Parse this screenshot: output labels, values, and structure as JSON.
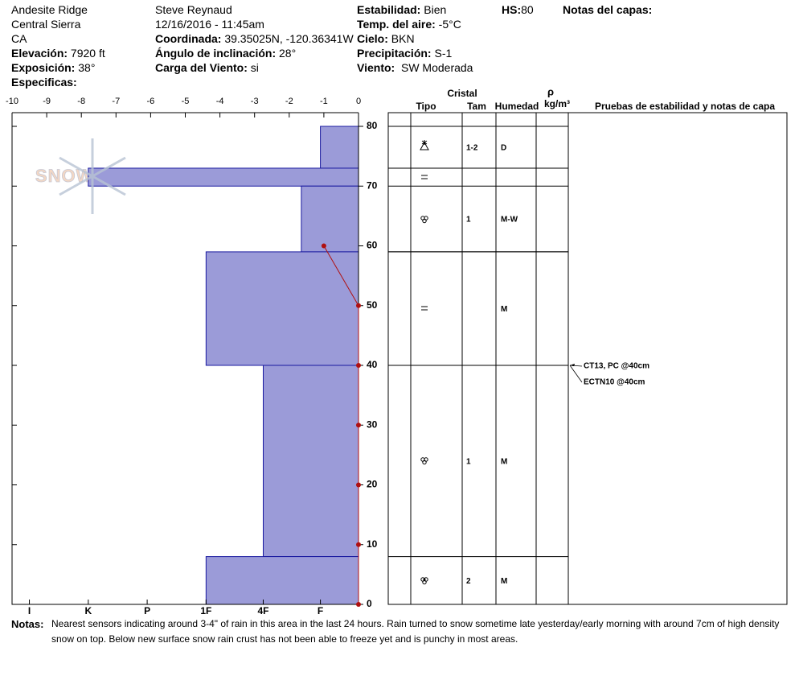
{
  "header": {
    "location": "Andesite Ridge",
    "range": "Central Sierra",
    "state": "CA",
    "elevation_label": "Elevación:",
    "elevation": "7920 ft",
    "aspect_label": "Exposición:",
    "aspect": "38°",
    "specifics_label": "Especificas:",
    "observer": "Steve Reynaud",
    "datetime": "12/16/2016 - 11:45am",
    "coord_label": "Coordinada:",
    "coord": "39.35025N, -120.36341W",
    "slope_label": "Ángulo de inclinación:",
    "slope": "28°",
    "wind_load_label": "Carga del Viento:",
    "wind_load": "si",
    "stability_label": "Estabilidad:",
    "stability": "Bien",
    "air_temp_label": "Temp. del aire:",
    "air_temp": "-5°C",
    "sky_label": "Cielo:",
    "sky": "BKN",
    "precip_label": "Precipitación:",
    "precip": "S-1",
    "wind_label": "Viento:",
    "wind": "SW Moderada",
    "hs_label": "HS:",
    "hs": "80",
    "layer_notes_label": "Notas del capas:"
  },
  "chart_data": {
    "type": "snow-profile",
    "logo": "SNOWPILOT",
    "xlim": [
      -10,
      0
    ],
    "xticks": [
      -10,
      -9,
      -8,
      -7,
      -6,
      -5,
      -4,
      -3,
      -2,
      -1,
      0
    ],
    "ylim": [
      0,
      80
    ],
    "yticks": [
      0,
      10,
      20,
      30,
      40,
      50,
      60,
      70,
      80
    ],
    "hardness_ticks": [
      {
        "value": -9.5,
        "label": "I"
      },
      {
        "value": -7.8,
        "label": "K"
      },
      {
        "value": -6.1,
        "label": "P"
      },
      {
        "value": -4.4,
        "label": "1F"
      },
      {
        "value": -2.75,
        "label": "4F"
      },
      {
        "value": -1.1,
        "label": "F"
      }
    ],
    "layer_color": "#9b9bd8",
    "layer_edge": "#1a1aa0",
    "layers": [
      {
        "top": 80,
        "bottom": 73,
        "hardness": -1.1,
        "size": "1-2",
        "moisture": "D"
      },
      {
        "top": 73,
        "bottom": 70,
        "hardness": -7.8
      },
      {
        "top": 70,
        "bottom": 59,
        "hardness": -1.65,
        "size": "1",
        "moisture": "M-W"
      },
      {
        "top": 59,
        "bottom": 40,
        "hardness": -4.4,
        "moisture": "M"
      },
      {
        "top": 40,
        "bottom": 8,
        "hardness": -2.75,
        "size": "1",
        "moisture": "M"
      },
      {
        "top": 8,
        "bottom": 0,
        "hardness": -4.4,
        "size": "2",
        "moisture": "M"
      }
    ],
    "temperature": {
      "color": "#b01010",
      "depth": [
        60,
        50,
        40,
        30,
        20,
        10,
        0
      ],
      "temp": [
        -1,
        0,
        0,
        0,
        0,
        0,
        0
      ]
    },
    "table_headers": {
      "crystal": "Cristal",
      "type": "Tipo",
      "size": "Tam",
      "moisture": "Humedad",
      "rho": "ρ",
      "density_unit": "kg/m³",
      "tests": "Pruebas de estabilidad y notas de capa"
    },
    "tests": [
      {
        "label": "CT13, PC @40cm",
        "depth": 40
      },
      {
        "label": "ECTN10 @40cm",
        "depth": 40
      }
    ]
  },
  "notes": {
    "label": "Notas:",
    "text": "Nearest sensors indicating around 3-4\" of rain in this area in the last 24 hours.  Rain turned to snow sometime late yesterday/early morning with around 7cm of high density snow on top.  Below new surface snow rain crust has not been able to freeze yet and is punchy in most areas."
  }
}
